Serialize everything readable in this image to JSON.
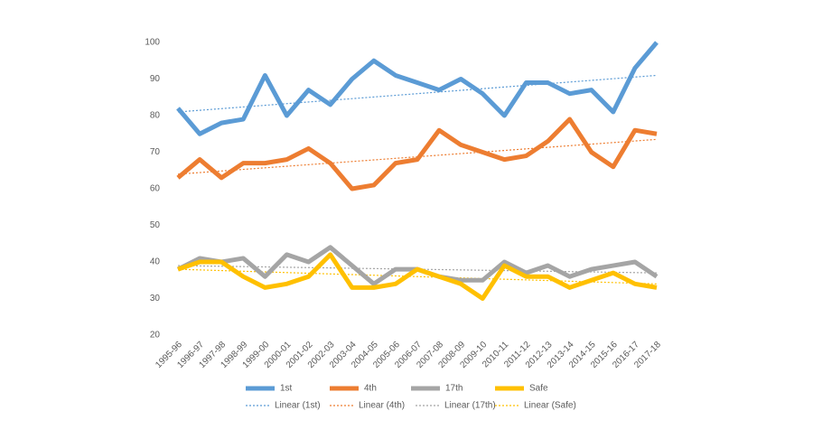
{
  "chart_data": {
    "type": "line",
    "categories": [
      "1995-96",
      "1996-97",
      "1997-98",
      "1998-99",
      "1999-00",
      "2000-01",
      "2001-02",
      "2002-03",
      "2003-04",
      "2004-05",
      "2005-06",
      "2006-07",
      "2007-08",
      "2008-09",
      "2009-10",
      "2010-11",
      "2011-12",
      "2012-13",
      "2013-14",
      "2014-15",
      "2015-16",
      "2016-17",
      "2017-18"
    ],
    "series": [
      {
        "name": "1st",
        "color": "#5b9bd5",
        "values": [
          82,
          75,
          78,
          79,
          91,
          80,
          87,
          83,
          90,
          95,
          91,
          89,
          87,
          90,
          86,
          80,
          89,
          89,
          86,
          87,
          81,
          93,
          100
        ]
      },
      {
        "name": "4th",
        "color": "#ed7d31",
        "values": [
          63,
          68,
          63,
          67,
          67,
          68,
          71,
          67,
          60,
          61,
          67,
          68,
          76,
          72,
          70,
          68,
          69,
          73,
          79,
          70,
          66,
          76,
          75
        ]
      },
      {
        "name": "17th",
        "color": "#a5a5a5",
        "values": [
          38,
          41,
          40,
          41,
          36,
          42,
          40,
          44,
          39,
          34,
          38,
          38,
          36,
          35,
          35,
          40,
          37,
          39,
          36,
          38,
          39,
          40,
          36
        ]
      },
      {
        "name": "Safe",
        "color": "#ffc000",
        "values": [
          38,
          40,
          40,
          36,
          33,
          34,
          36,
          42,
          33,
          33,
          34,
          38,
          36,
          34,
          30,
          39,
          36,
          36,
          33,
          35,
          37,
          34,
          33
        ]
      }
    ],
    "trendlines": [
      {
        "name": "Linear (1st)",
        "color": "#5b9bd5",
        "start": 81,
        "end": 91
      },
      {
        "name": "Linear (4th)",
        "color": "#ed7d31",
        "start": 64,
        "end": 73.5
      },
      {
        "name": "Linear (17th)",
        "color": "#a5a5a5",
        "start": 39,
        "end": 37
      },
      {
        "name": "Linear (Safe)",
        "color": "#ffc000",
        "start": 38,
        "end": 34
      }
    ],
    "ylim": [
      20,
      100
    ],
    "yticks": [
      20,
      30,
      40,
      50,
      60,
      70,
      80,
      90,
      100
    ],
    "grid": false
  }
}
